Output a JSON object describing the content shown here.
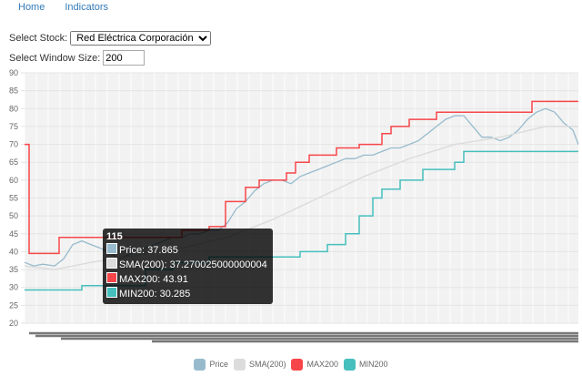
{
  "nav": {
    "items": [
      "Home",
      "Indicators"
    ]
  },
  "form": {
    "stock_label": "Select Stock:",
    "stock_value": "Red Eléctrica Corporación",
    "window_label": "Select Window Size:",
    "window_value": "200"
  },
  "tooltip": {
    "title": "115",
    "lines": [
      "Price: 37.865",
      "SMA(200): 37.270025000000004",
      "MAX200: 43.91",
      "MIN200: 30.285"
    ]
  },
  "chart_data": {
    "type": "line",
    "ylim": [
      20,
      90
    ],
    "yticks": [
      20,
      25,
      30,
      35,
      40,
      45,
      50,
      55,
      60,
      65,
      70,
      75,
      80,
      85,
      90
    ],
    "xlim": [
      0,
      1218
    ],
    "grid": true,
    "legend_placement": "bottom",
    "series": [
      {
        "name": "Price",
        "color": "#97bbcd",
        "points": [
          [
            0,
            37
          ],
          [
            20,
            36
          ],
          [
            40,
            36.5
          ],
          [
            66,
            36
          ],
          [
            86,
            38
          ],
          [
            106,
            42
          ],
          [
            126,
            43
          ],
          [
            146,
            42
          ],
          [
            166,
            41
          ],
          [
            186,
            40
          ],
          [
            206,
            38
          ],
          [
            226,
            39
          ],
          [
            246,
            40
          ],
          [
            266,
            41
          ],
          [
            286,
            42
          ],
          [
            306,
            43
          ],
          [
            326,
            44
          ],
          [
            346,
            44
          ],
          [
            366,
            45
          ],
          [
            386,
            45
          ],
          [
            406,
            46
          ],
          [
            426,
            46
          ],
          [
            446,
            48
          ],
          [
            466,
            52
          ],
          [
            486,
            54
          ],
          [
            506,
            57
          ],
          [
            526,
            59
          ],
          [
            546,
            60
          ],
          [
            566,
            60
          ],
          [
            586,
            59
          ],
          [
            606,
            61
          ],
          [
            626,
            62
          ],
          [
            646,
            63
          ],
          [
            666,
            64
          ],
          [
            686,
            65
          ],
          [
            706,
            66
          ],
          [
            726,
            66
          ],
          [
            746,
            67
          ],
          [
            766,
            67
          ],
          [
            786,
            68
          ],
          [
            806,
            69
          ],
          [
            826,
            69
          ],
          [
            846,
            70
          ],
          [
            866,
            71
          ],
          [
            886,
            73
          ],
          [
            906,
            75
          ],
          [
            926,
            77
          ],
          [
            946,
            78
          ],
          [
            966,
            78
          ],
          [
            986,
            75
          ],
          [
            1006,
            72
          ],
          [
            1026,
            72
          ],
          [
            1046,
            71
          ],
          [
            1066,
            72
          ],
          [
            1086,
            74
          ],
          [
            1106,
            77
          ],
          [
            1126,
            79
          ],
          [
            1146,
            80
          ],
          [
            1166,
            79
          ],
          [
            1186,
            76
          ],
          [
            1206,
            74
          ],
          [
            1218,
            70
          ]
        ]
      },
      {
        "name": "SMA(200)",
        "color": "#dcdcdc",
        "points": [
          [
            0,
            36
          ],
          [
            66,
            35
          ],
          [
            146,
            37
          ],
          [
            246,
            39
          ],
          [
            346,
            41
          ],
          [
            446,
            44
          ],
          [
            546,
            49
          ],
          [
            646,
            55
          ],
          [
            746,
            61
          ],
          [
            846,
            66
          ],
          [
            946,
            70
          ],
          [
            1046,
            72
          ],
          [
            1146,
            75
          ],
          [
            1218,
            75
          ]
        ]
      },
      {
        "name": "MAX200",
        "color": "#f7464a",
        "step": true,
        "points": [
          [
            0,
            70
          ],
          [
            10,
            70
          ],
          [
            10,
            39.5
          ],
          [
            76,
            39.5
          ],
          [
            76,
            44
          ],
          [
            346,
            44
          ],
          [
            346,
            46
          ],
          [
            406,
            46
          ],
          [
            406,
            47
          ],
          [
            442,
            47
          ],
          [
            442,
            54
          ],
          [
            486,
            54
          ],
          [
            486,
            58
          ],
          [
            516,
            58
          ],
          [
            516,
            60
          ],
          [
            576,
            60
          ],
          [
            576,
            62
          ],
          [
            596,
            62
          ],
          [
            596,
            65
          ],
          [
            626,
            65
          ],
          [
            626,
            67
          ],
          [
            686,
            67
          ],
          [
            686,
            69
          ],
          [
            736,
            69
          ],
          [
            736,
            70
          ],
          [
            786,
            70
          ],
          [
            786,
            73
          ],
          [
            806,
            73
          ],
          [
            806,
            75
          ],
          [
            846,
            75
          ],
          [
            846,
            77
          ],
          [
            906,
            77
          ],
          [
            906,
            79
          ],
          [
            1116,
            79
          ],
          [
            1116,
            82
          ],
          [
            1218,
            82
          ]
        ]
      },
      {
        "name": "MIN200",
        "color": "#46bfbd",
        "step": true,
        "points": [
          [
            0,
            29.3
          ],
          [
            126,
            29.3
          ],
          [
            126,
            30.5
          ],
          [
            266,
            30.5
          ],
          [
            266,
            35
          ],
          [
            326,
            35
          ],
          [
            326,
            37
          ],
          [
            406,
            37
          ],
          [
            406,
            38.5
          ],
          [
            606,
            38.5
          ],
          [
            606,
            40
          ],
          [
            666,
            40
          ],
          [
            666,
            42
          ],
          [
            706,
            42
          ],
          [
            706,
            45
          ],
          [
            736,
            45
          ],
          [
            736,
            50
          ],
          [
            766,
            50
          ],
          [
            766,
            55
          ],
          [
            786,
            55
          ],
          [
            786,
            57.5
          ],
          [
            826,
            57.5
          ],
          [
            826,
            60
          ],
          [
            876,
            60
          ],
          [
            876,
            63
          ],
          [
            946,
            63
          ],
          [
            946,
            65
          ],
          [
            966,
            65
          ],
          [
            966,
            68
          ],
          [
            1218,
            68
          ]
        ]
      }
    ]
  }
}
